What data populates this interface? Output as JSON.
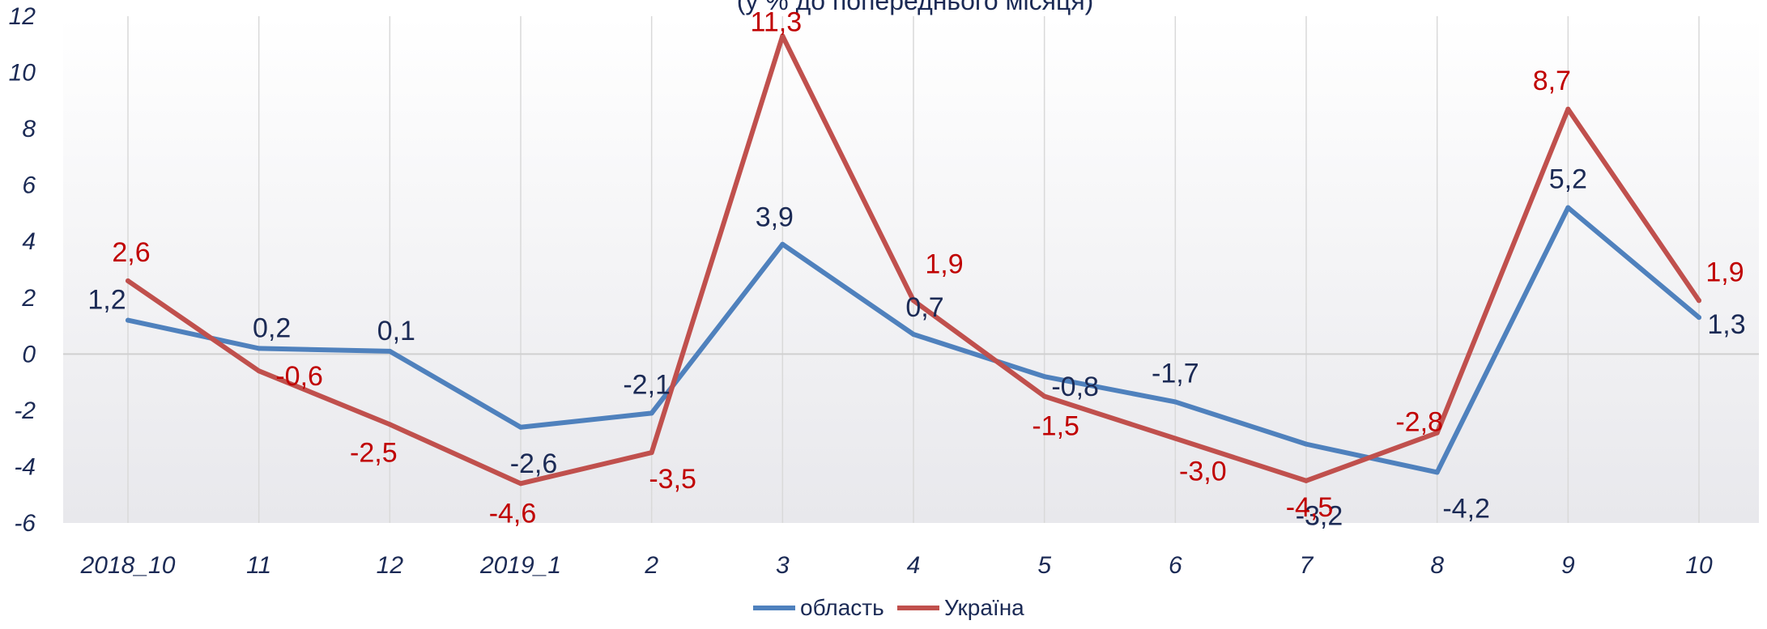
{
  "chart_data": {
    "type": "line",
    "title": "(у % до попереднього місяця)",
    "categories": [
      "2018_10",
      "11",
      "12",
      "2019_1",
      "2",
      "3",
      "4",
      "5",
      "6",
      "7",
      "8",
      "9",
      "10"
    ],
    "ylim": [
      -6,
      12
    ],
    "yticks": [
      "12",
      "10",
      "8",
      "6",
      "4",
      "2",
      "0",
      "-2",
      "-4",
      "-6"
    ],
    "grid": true,
    "legend_position": "bottom",
    "series": [
      {
        "name": "область",
        "color": "#4f81bd",
        "label_color": "#1b2a55",
        "values": [
          1.2,
          0.2,
          0.1,
          -2.6,
          -2.1,
          3.9,
          0.7,
          -0.8,
          -1.7,
          -3.2,
          -4.2,
          5.2,
          1.3
        ],
        "labels": [
          "1,2",
          "0,2",
          "0,1",
          "-2,6",
          "-2,1",
          "3,9",
          "0,7",
          "-0,8",
          "-1,7",
          "-3,2",
          "-4,2",
          "5,2",
          "1,3"
        ]
      },
      {
        "name": "Україна",
        "color": "#c0504d",
        "label_color": "#c00000",
        "values": [
          2.6,
          -0.6,
          -2.5,
          -4.6,
          -3.5,
          11.3,
          1.9,
          -1.5,
          -3.0,
          -4.5,
          -2.8,
          8.7,
          1.9
        ],
        "labels": [
          "2,6",
          "-0,6",
          "-2,5",
          "-4,6",
          "-3,5",
          "11,3",
          "1,9",
          "-1,5",
          "-3,0",
          "-4,5",
          "-2,8",
          "8,7",
          "1,9"
        ]
      }
    ]
  }
}
